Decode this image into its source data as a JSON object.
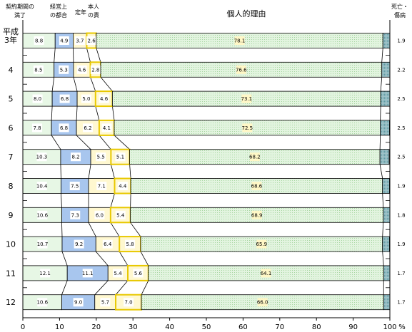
{
  "chart_data": {
    "type": "bar",
    "stacked": true,
    "orientation": "horizontal",
    "title": "",
    "xlabel": "",
    "ylabel": "",
    "x_unit": "%",
    "xlim": [
      0,
      100
    ],
    "x_ticks": [
      0,
      10,
      20,
      30,
      40,
      50,
      60,
      70,
      80,
      90,
      100
    ],
    "categories": [
      "平成3年",
      "4",
      "5",
      "6",
      "7",
      "8",
      "9",
      "10",
      "11",
      "12"
    ],
    "category_label_lines": [
      [
        "平成",
        "3年"
      ],
      [
        "4"
      ],
      [
        "5"
      ],
      [
        "6"
      ],
      [
        "7"
      ],
      [
        "8"
      ],
      [
        "9"
      ],
      [
        "10"
      ],
      [
        "11"
      ],
      [
        "12"
      ]
    ],
    "series": [
      {
        "name": "契約期間の満了",
        "name_lines": [
          "契約期間の",
          "満了"
        ],
        "values": [
          8.8,
          8.5,
          8.0,
          7.8,
          10.3,
          10.4,
          10.6,
          10.7,
          12.1,
          10.6
        ]
      },
      {
        "name": "経営上の都合",
        "name_lines": [
          "経営上",
          "の都合"
        ],
        "values": [
          4.9,
          5.3,
          6.8,
          6.8,
          8.2,
          7.5,
          7.3,
          9.2,
          11.1,
          9.0
        ]
      },
      {
        "name": "定年",
        "name_lines": [
          "定年"
        ],
        "values": [
          3.7,
          4.6,
          5.0,
          6.2,
          5.5,
          7.1,
          6.0,
          6.4,
          5.4,
          5.7
        ]
      },
      {
        "name": "本人の責",
        "name_lines": [
          "本人",
          "の責"
        ],
        "values": [
          2.6,
          2.8,
          4.6,
          4.1,
          5.1,
          4.4,
          5.4,
          5.8,
          5.6,
          7.0
        ]
      },
      {
        "name": "個人的理由",
        "name_lines": [
          "個人的理由"
        ],
        "values": [
          78.1,
          76.6,
          73.1,
          72.5,
          68.2,
          68.6,
          68.9,
          65.9,
          64.1,
          66.0
        ]
      },
      {
        "name": "死亡・傷病",
        "name_lines": [
          "死亡・",
          "傷病"
        ],
        "values": [
          1.9,
          2.2,
          2.5,
          2.5,
          2.5,
          1.9,
          1.8,
          1.9,
          1.7,
          1.7
        ]
      }
    ],
    "colors": {
      "fill": [
        "#e7f7e5",
        "#a8c6ee",
        "#fff8d0",
        "#fff8d0",
        "#e2f4df",
        "#9ec2c8"
      ],
      "stroke": [
        "#000000",
        "#000000",
        "#000000",
        "#e8c800",
        "#000000",
        "#000000"
      ],
      "label_bg": [
        "#ffffff",
        "#ffffff",
        "#ffffff",
        "#ffffff",
        "#fff7c6",
        null
      ]
    },
    "grid": false,
    "legend": "top",
    "connector_lines": true
  }
}
